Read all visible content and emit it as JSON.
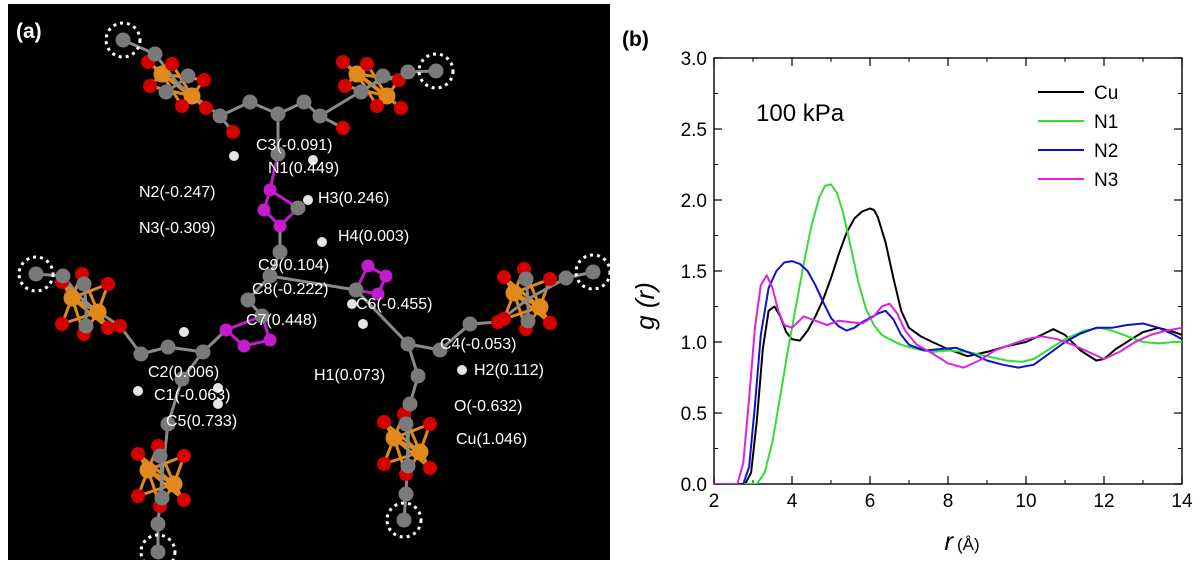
{
  "panel_a": {
    "tag": "(a)",
    "atom_labels": [
      "C3(-0.091)",
      "N1(0.449)",
      "N2(-0.247)",
      "H3(0.246)",
      "N3(-0.309)",
      "H4(0.003)",
      "C9(0.104)",
      "C8(-0.222)",
      "C6(-0.455)",
      "C7(0.448)",
      "C4(-0.053)",
      "C2(0.006)",
      "H1(0.073)",
      "H2(0.112)",
      "C1(-0.063)",
      "O(-0.632)",
      "C5(0.733)",
      "Cu(1.046)"
    ],
    "colors": {
      "background": "#000000",
      "carbon": "#7a7a7a",
      "oxygen": "#d40000",
      "copper": "#e08a1e",
      "nitrogen": "#c21ccd",
      "hydrogen": "#e6e6e6",
      "label": "#ffffff"
    }
  },
  "panel_b": {
    "tag": "(b)",
    "annotation": "100 kPa",
    "ylabel": "g (r)",
    "xlabel": "r",
    "xunit": "(Å)"
  },
  "chart_data": {
    "type": "line",
    "xlim": [
      2,
      14
    ],
    "ylim": [
      0.0,
      3.0
    ],
    "xticks": [
      "2",
      "4",
      "6",
      "8",
      "10",
      "12",
      "14"
    ],
    "yticks": [
      "0.0",
      "0.5",
      "1.0",
      "1.5",
      "2.0",
      "2.5",
      "3.0"
    ],
    "grid": false,
    "legend_position": "top-right",
    "series": [
      {
        "name": "Cu",
        "color": "#000000",
        "x": [
          2.0,
          2.8,
          2.95,
          3.1,
          3.25,
          3.4,
          3.55,
          3.7,
          3.85,
          4.0,
          4.2,
          4.4,
          4.6,
          4.8,
          5.0,
          5.2,
          5.4,
          5.6,
          5.8,
          6.0,
          6.1,
          6.2,
          6.4,
          6.6,
          6.8,
          7.0,
          7.3,
          7.6,
          8.0,
          8.5,
          9.0,
          9.5,
          10.0,
          10.4,
          10.7,
          11.0,
          11.4,
          11.8,
          12.0,
          12.3,
          12.7,
          13.0,
          13.4,
          13.8,
          14.0
        ],
        "y": [
          0.0,
          0.0,
          0.08,
          0.45,
          0.95,
          1.22,
          1.25,
          1.18,
          1.07,
          1.02,
          1.01,
          1.08,
          1.18,
          1.3,
          1.45,
          1.62,
          1.77,
          1.87,
          1.92,
          1.94,
          1.93,
          1.88,
          1.7,
          1.45,
          1.22,
          1.1,
          1.04,
          1.0,
          0.95,
          0.9,
          0.93,
          0.97,
          1.0,
          1.05,
          1.09,
          1.05,
          0.94,
          0.87,
          0.88,
          0.95,
          1.02,
          1.07,
          1.1,
          1.07,
          1.05
        ]
      },
      {
        "name": "N1",
        "color": "#33dd33",
        "x": [
          2.0,
          3.1,
          3.3,
          3.5,
          3.7,
          3.9,
          4.1,
          4.3,
          4.5,
          4.7,
          4.85,
          5.0,
          5.15,
          5.3,
          5.5,
          5.7,
          5.9,
          6.1,
          6.3,
          6.5,
          6.8,
          7.2,
          7.6,
          8.0,
          8.5,
          9.0,
          9.5,
          9.9,
          10.2,
          10.6,
          11.0,
          11.5,
          11.9,
          12.2,
          12.6,
          13.0,
          13.4,
          13.8,
          14.0
        ],
        "y": [
          0.0,
          0.0,
          0.08,
          0.3,
          0.62,
          0.95,
          1.25,
          1.55,
          1.82,
          2.02,
          2.1,
          2.11,
          2.05,
          1.92,
          1.68,
          1.42,
          1.23,
          1.12,
          1.05,
          1.02,
          0.98,
          0.95,
          0.93,
          0.94,
          0.93,
          0.9,
          0.87,
          0.86,
          0.88,
          0.95,
          1.02,
          1.08,
          1.1,
          1.08,
          1.04,
          1.0,
          0.99,
          1.0,
          1.0
        ]
      },
      {
        "name": "N2",
        "color": "#1111cc",
        "x": [
          2.0,
          2.75,
          2.9,
          3.05,
          3.2,
          3.4,
          3.6,
          3.8,
          4.0,
          4.2,
          4.4,
          4.6,
          4.8,
          5.0,
          5.2,
          5.4,
          5.6,
          5.8,
          6.0,
          6.2,
          6.4,
          6.6,
          6.8,
          7.0,
          7.4,
          7.8,
          8.2,
          8.6,
          9.0,
          9.4,
          9.8,
          10.2,
          10.6,
          11.0,
          11.4,
          11.8,
          12.2,
          12.6,
          13.0,
          13.4,
          13.8,
          14.0
        ],
        "y": [
          0.0,
          0.0,
          0.12,
          0.55,
          1.05,
          1.38,
          1.5,
          1.56,
          1.57,
          1.55,
          1.5,
          1.4,
          1.28,
          1.17,
          1.11,
          1.08,
          1.1,
          1.14,
          1.17,
          1.2,
          1.22,
          1.16,
          1.05,
          0.98,
          0.94,
          0.95,
          0.96,
          0.92,
          0.87,
          0.84,
          0.82,
          0.84,
          0.92,
          1.0,
          1.06,
          1.1,
          1.1,
          1.12,
          1.13,
          1.1,
          1.05,
          1.02
        ]
      },
      {
        "name": "N3",
        "color": "#dd22dd",
        "x": [
          2.0,
          2.6,
          2.75,
          2.9,
          3.05,
          3.2,
          3.35,
          3.5,
          3.65,
          3.8,
          4.0,
          4.3,
          4.6,
          4.9,
          5.2,
          5.5,
          5.8,
          6.1,
          6.3,
          6.5,
          6.7,
          6.9,
          7.2,
          7.6,
          8.0,
          8.4,
          8.8,
          9.2,
          9.6,
          10.0,
          10.4,
          10.8,
          11.2,
          11.6,
          12.0,
          12.4,
          12.8,
          13.2,
          13.6,
          14.0
        ],
        "y": [
          0.0,
          0.0,
          0.15,
          0.6,
          1.1,
          1.4,
          1.47,
          1.38,
          1.22,
          1.12,
          1.1,
          1.18,
          1.15,
          1.12,
          1.15,
          1.14,
          1.13,
          1.18,
          1.25,
          1.27,
          1.2,
          1.08,
          0.98,
          0.92,
          0.85,
          0.82,
          0.87,
          0.94,
          0.98,
          1.02,
          1.04,
          1.02,
          0.98,
          0.93,
          0.88,
          0.93,
          1.0,
          1.05,
          1.08,
          1.1
        ]
      }
    ]
  }
}
